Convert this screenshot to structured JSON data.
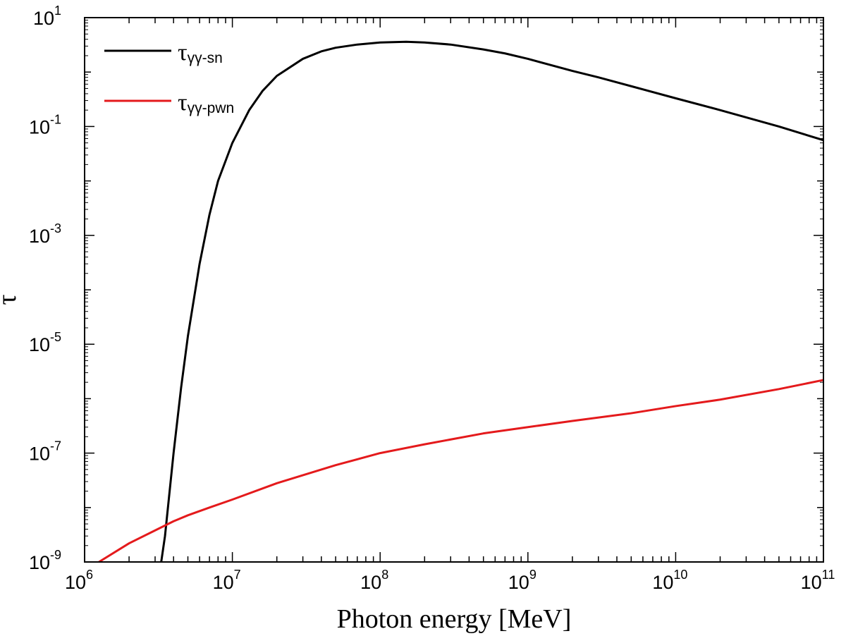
{
  "chart_data": {
    "type": "line",
    "title": "",
    "xlabel": "Photon energy [MeV]",
    "ylabel": "τ",
    "xscale": "log",
    "yscale": "log",
    "xlim": [
      1000000.0,
      100000000000.0
    ],
    "ylim": [
      1e-09,
      10
    ],
    "xticks": [
      {
        "value": 1000000.0,
        "base": "10",
        "exp": "6"
      },
      {
        "value": 10000000.0,
        "base": "10",
        "exp": "7"
      },
      {
        "value": 100000000.0,
        "base": "10",
        "exp": "8"
      },
      {
        "value": 1000000000.0,
        "base": "10",
        "exp": "9"
      },
      {
        "value": 10000000000.0,
        "base": "10",
        "exp": "10"
      },
      {
        "value": 100000000000.0,
        "base": "10",
        "exp": "11"
      }
    ],
    "yticks": [
      {
        "value": 10,
        "base": "10",
        "exp": "1"
      },
      {
        "value": 0.1,
        "base": "10",
        "exp": "-1"
      },
      {
        "value": 0.001,
        "base": "10",
        "exp": "-3"
      },
      {
        "value": 1e-05,
        "base": "10",
        "exp": "-5"
      },
      {
        "value": 1e-07,
        "base": "10",
        "exp": "-7"
      },
      {
        "value": 1e-09,
        "base": "10",
        "exp": "-9"
      }
    ],
    "legend_position": "top-left",
    "series": [
      {
        "name": "τγγ-sn",
        "symbol": "τ",
        "subscript": "γγ-sn",
        "color": "#000000",
        "x": [
          3300000.0,
          3500000.0,
          4000000.0,
          4500000.0,
          5000000.0,
          6000000.0,
          7000000.0,
          8000000.0,
          10000000.0,
          13000000.0,
          16000000.0,
          20000000.0,
          30000000.0,
          40000000.0,
          50000000.0,
          70000000.0,
          100000000.0,
          150000000.0,
          200000000.0,
          300000000.0,
          500000000.0,
          700000000.0,
          1000000000.0,
          2000000000.0,
          3000000000.0,
          5000000000.0,
          10000000000.0,
          20000000000.0,
          50000000000.0,
          100000000000.0
        ],
        "y": [
          1e-09,
          3e-09,
          1e-07,
          1.6e-06,
          1.4e-05,
          0.0003,
          0.0024,
          0.01,
          0.05,
          0.2,
          0.45,
          0.85,
          1.75,
          2.4,
          2.8,
          3.2,
          3.5,
          3.6,
          3.5,
          3.2,
          2.6,
          2.2,
          1.75,
          1.05,
          0.8,
          0.55,
          0.33,
          0.2,
          0.1,
          0.056
        ]
      },
      {
        "name": "τγγ-pwn",
        "symbol": "τ",
        "subscript": "γγ-pwn",
        "color": "#e41a1c",
        "x": [
          1250000.0,
          2000000.0,
          3000000.0,
          4000000.0,
          5000000.0,
          7000000.0,
          10000000.0,
          20000000.0,
          50000000.0,
          100000000.0,
          200000000.0,
          500000000.0,
          1000000000.0,
          2000000000.0,
          5000000000.0,
          10000000000.0,
          20000000000.0,
          50000000000.0,
          100000000000.0
        ],
        "y": [
          1e-09,
          2.2e-09,
          3.8e-09,
          5.6e-09,
          7.2e-09,
          1e-08,
          1.4e-08,
          2.8e-08,
          6e-08,
          1e-07,
          1.45e-07,
          2.3e-07,
          3e-07,
          3.9e-07,
          5.4e-07,
          7.3e-07,
          9.6e-07,
          1.5e-06,
          2.2e-06
        ]
      }
    ]
  }
}
